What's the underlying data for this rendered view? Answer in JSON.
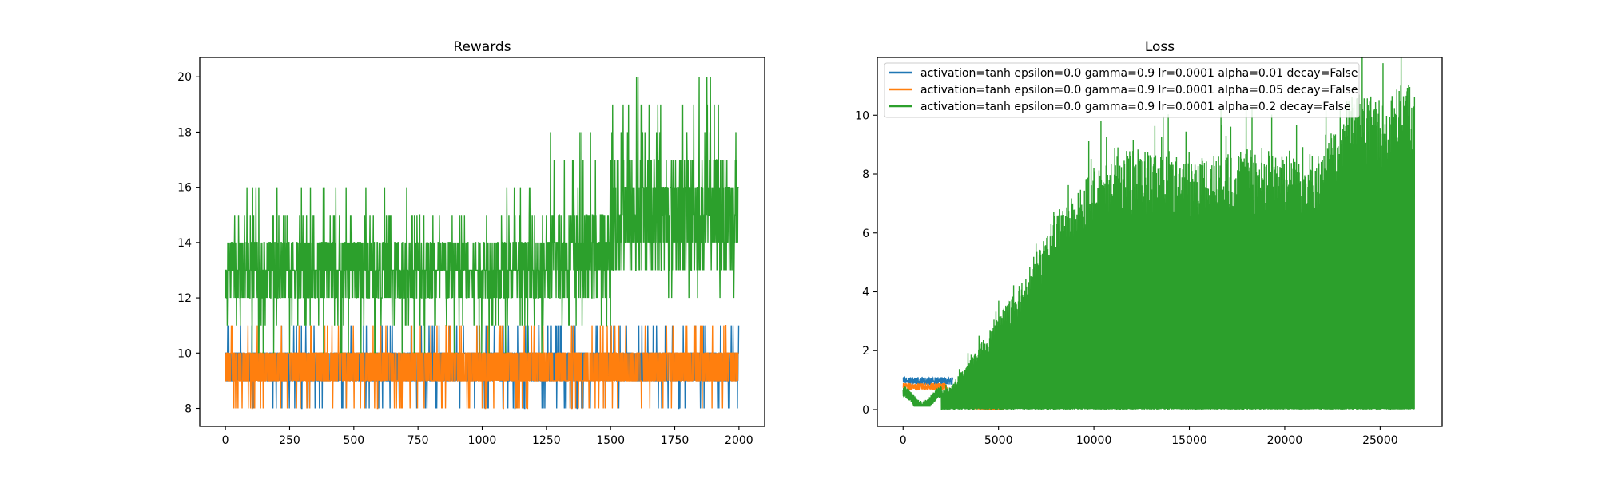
{
  "chart_data": [
    {
      "type": "line",
      "title": "Rewards",
      "xlim": [
        -100,
        2100
      ],
      "ylim": [
        7.35,
        20.7
      ],
      "xticks": [
        0,
        250,
        500,
        750,
        1000,
        1250,
        1500,
        1750,
        2000
      ],
      "yticks": [
        8,
        10,
        12,
        14,
        16,
        18,
        20
      ],
      "grid": false,
      "legend": null,
      "n_points": 2000,
      "series": [
        {
          "color": "#1f77b4",
          "segments": [
            {
              "x_range": [
                0,
                2000
              ],
              "min": 8,
              "max": 11,
              "typical_low": 9,
              "typical_high": 10
            }
          ]
        },
        {
          "color": "#ff7f0e",
          "segments": [
            {
              "x_range": [
                0,
                2000
              ],
              "min": 8,
              "max": 11,
              "typical_low": 9,
              "typical_high": 10
            }
          ]
        },
        {
          "color": "#2ca02c",
          "segments": [
            {
              "x_range": [
                0,
                10
              ],
              "min": 10,
              "max": 14,
              "typical_low": 12,
              "typical_high": 14
            },
            {
              "x_range": [
                10,
                1250
              ],
              "min": 10,
              "max": 16,
              "typical_low": 12,
              "typical_high": 14
            },
            {
              "x_range": [
                1250,
                1500
              ],
              "min": 11,
              "max": 18,
              "typical_low": 12,
              "typical_high": 15
            },
            {
              "x_range": [
                1500,
                2000
              ],
              "min": 12,
              "max": 20,
              "typical_low": 13,
              "typical_high": 17
            }
          ]
        }
      ]
    },
    {
      "type": "line",
      "title": "Loss",
      "xlim": [
        -1350,
        28250
      ],
      "ylim": [
        -0.57,
        11.96
      ],
      "xticks": [
        0,
        5000,
        10000,
        15000,
        20000,
        25000
      ],
      "yticks": [
        0,
        2,
        4,
        6,
        8,
        10
      ],
      "grid": false,
      "legend": "upper left",
      "series": [
        {
          "name": "activation=tanh epsilon=0.0 gamma=0.9 lr=0.0001 alpha=0.01 decay=False",
          "color": "#1f77b4",
          "segments": [
            {
              "x_range": [
                0,
                2600
              ],
              "min": 0.85,
              "max": 1.1
            }
          ]
        },
        {
          "name": "activation=tanh epsilon=0.0 gamma=0.9 lr=0.0001 alpha=0.05 decay=False",
          "color": "#ff7f0e",
          "segments": [
            {
              "x_range": [
                0,
                2300
              ],
              "min": 0.65,
              "max": 0.9
            }
          ]
        },
        {
          "name": "activation=tanh epsilon=0.0 gamma=0.9 lr=0.0001 alpha=0.2 decay=False",
          "color": "#2ca02c",
          "segments": [
            {
              "x_range": [
                0,
                2000
              ],
              "min": 0.1,
              "max": 0.6
            },
            {
              "x_range": [
                2000,
                10000
              ],
              "min": 0.0,
              "max": 8.3
            },
            {
              "x_range": [
                10000,
                26800
              ],
              "min": 0.0,
              "max": 11.3
            }
          ],
          "envelope": [
            [
              0,
              0.6
            ],
            [
              1500,
              0.5
            ],
            [
              2500,
              0.8
            ],
            [
              4000,
              2.2
            ],
            [
              5000,
              3.2
            ],
            [
              6000,
              4.3
            ],
            [
              7000,
              5.3
            ],
            [
              8000,
              6.8
            ],
            [
              9000,
              7.4
            ],
            [
              10000,
              8.3
            ],
            [
              12000,
              9.0
            ],
            [
              15000,
              8.6
            ],
            [
              18000,
              9.0
            ],
            [
              20000,
              9.0
            ],
            [
              22000,
              8.7
            ],
            [
              23500,
              11.0
            ],
            [
              25000,
              10.7
            ],
            [
              26500,
              11.3
            ],
            [
              26800,
              10.8
            ]
          ]
        }
      ]
    }
  ]
}
